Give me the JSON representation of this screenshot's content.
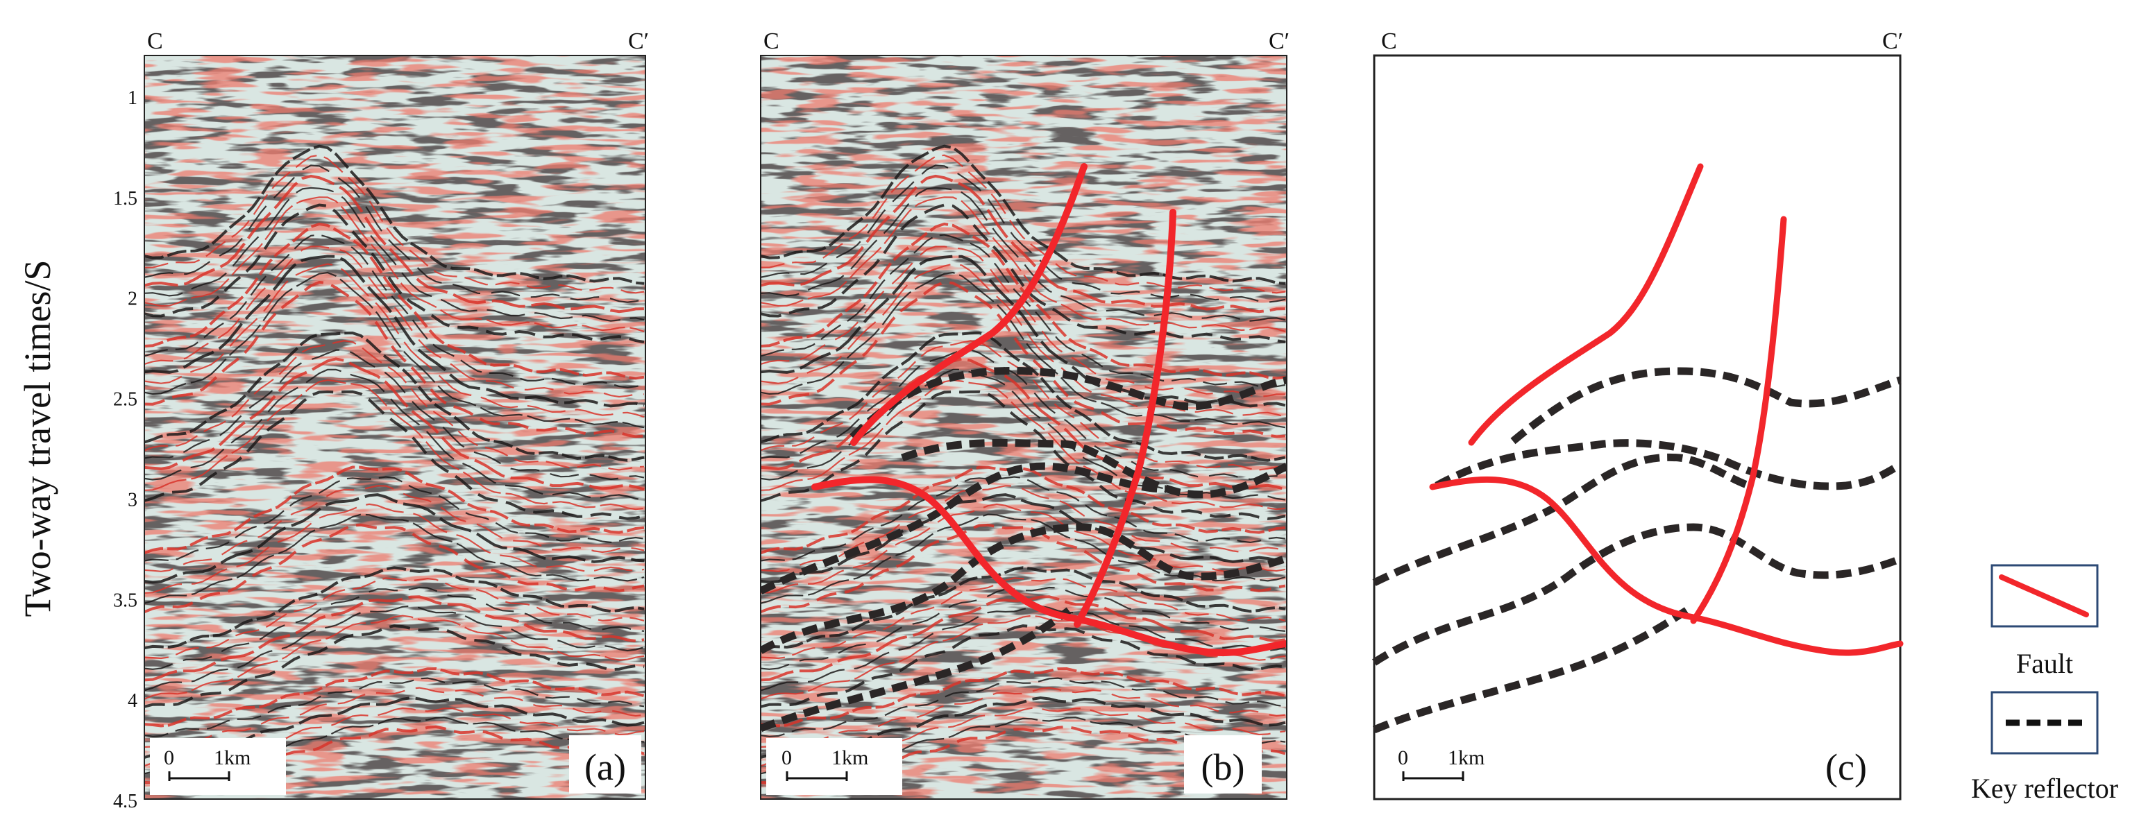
{
  "figure": {
    "y_axis": {
      "title": "Two-way travel times/S",
      "ticks": [
        "1",
        "1.5",
        "2",
        "2.5",
        "3",
        "3.5",
        "4",
        "4.5"
      ]
    },
    "panels": [
      {
        "id": "a",
        "label": "(a)",
        "left": "C",
        "right": "C′",
        "content": "seismic section"
      },
      {
        "id": "b",
        "label": "(b)",
        "left": "C",
        "right": "C′",
        "content": "seismic section with interpretation"
      },
      {
        "id": "c",
        "label": "(c)",
        "left": "C",
        "right": "C′",
        "content": "interpretation only"
      }
    ],
    "scale_bar": {
      "zero": "0",
      "length": "1km"
    },
    "legend": [
      {
        "key": "fault",
        "label": "Fault"
      },
      {
        "key": "key-reflector",
        "label": "Key reflector"
      }
    ]
  },
  "colors": {
    "fault": "#f2262b",
    "reflector": "#2a2626",
    "seismic_red": "#d8342a",
    "seismic_black": "#1c1a1a",
    "seismic_bg": "#d9e6e2",
    "legend_border": "#2c4a75"
  }
}
